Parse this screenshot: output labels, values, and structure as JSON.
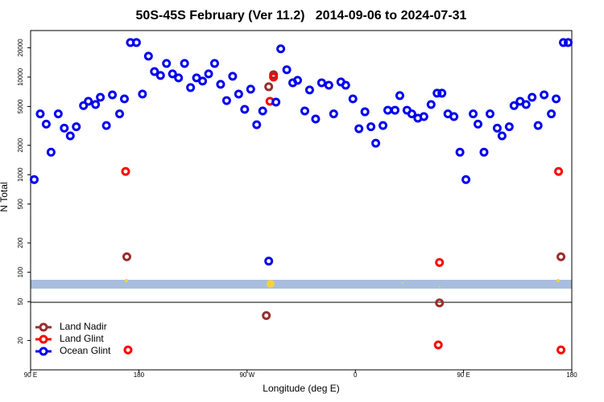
{
  "chart_data": {
    "type": "scatter",
    "title": "50S-45S February (Ver 11.2)   2014-09-06 to 2024-07-31",
    "xlabel": "Longitude (deg E)",
    "ylabel": "N Total",
    "xlim": [
      90,
      540
    ],
    "xticks": [
      {
        "value": 90,
        "label": "90 E"
      },
      {
        "value": 180,
        "label": "180"
      },
      {
        "value": 270,
        "label": "90 W"
      },
      {
        "value": 360,
        "label": "0"
      },
      {
        "value": 450,
        "label": "90 E"
      },
      {
        "value": 540,
        "label": "180"
      }
    ],
    "ylim": [
      10,
      30000
    ],
    "log_y": true,
    "yticks": [
      20,
      50,
      100,
      200,
      500,
      1000,
      2000,
      5000,
      10000,
      20000
    ],
    "legend": "bottom-left",
    "series": [
      {
        "name": "Land Nadir",
        "color": "#9b2d2d",
        "x": [
          170,
          286,
          288,
          292,
          430,
          531
        ],
        "values": [
          144,
          36,
          7960,
          10600,
          48.5,
          144
        ]
      },
      {
        "name": "Land Glint",
        "color": "#ff0000",
        "x": [
          169,
          171,
          289,
          292,
          430,
          429,
          529,
          531
        ],
        "values": [
          1080,
          16,
          5650,
          10000,
          126,
          18,
          1080,
          16
        ]
      },
      {
        "name": "Ocean Glint",
        "color": "#0000ee",
        "x": [
          93,
          98,
          103,
          107,
          113,
          118,
          123,
          128,
          134,
          138,
          144,
          148,
          153,
          158,
          164,
          168,
          173,
          178,
          183,
          188,
          193,
          198,
          203,
          208,
          213,
          218,
          223,
          228,
          233,
          238,
          243,
          248,
          253,
          258,
          263,
          268,
          273,
          278,
          283,
          288,
          294,
          298,
          303,
          308,
          312,
          318,
          322,
          327,
          332,
          338,
          342,
          348,
          352,
          358,
          363,
          368,
          373,
          377,
          383,
          387,
          393,
          397,
          403,
          407,
          412,
          417,
          423,
          428,
          432,
          437,
          442,
          447,
          452,
          458,
          462,
          467,
          472,
          478,
          482,
          488,
          492,
          497,
          502,
          507,
          512,
          517,
          523,
          527,
          533,
          537
        ],
        "values": [
          890,
          4200,
          3300,
          1700,
          4200,
          3000,
          2500,
          3100,
          5100,
          5650,
          5240,
          6210,
          3190,
          6580,
          4200,
          5980,
          22600,
          22600,
          6700,
          16400,
          11400,
          10400,
          13800,
          10800,
          9820,
          13800,
          7810,
          9820,
          9100,
          10800,
          13800,
          8430,
          5750,
          10200,
          6700,
          4670,
          7520,
          3250,
          4500,
          130,
          5540,
          19500,
          11900,
          8750,
          9270,
          4500,
          7380,
          3720,
          8750,
          8260,
          4200,
          8920,
          8260,
          5980,
          2960,
          4410,
          3100,
          2100,
          3190,
          4580,
          4580,
          6460,
          4580,
          4200,
          3790,
          3940,
          5240,
          6840,
          6840,
          4200,
          3940,
          1700,
          890,
          4200,
          3300,
          1700,
          4200,
          3000,
          2500,
          3100,
          5100,
          5650,
          5240,
          6210,
          3190,
          6580,
          4200,
          5980,
          22600,
          22600
        ]
      }
    ]
  }
}
